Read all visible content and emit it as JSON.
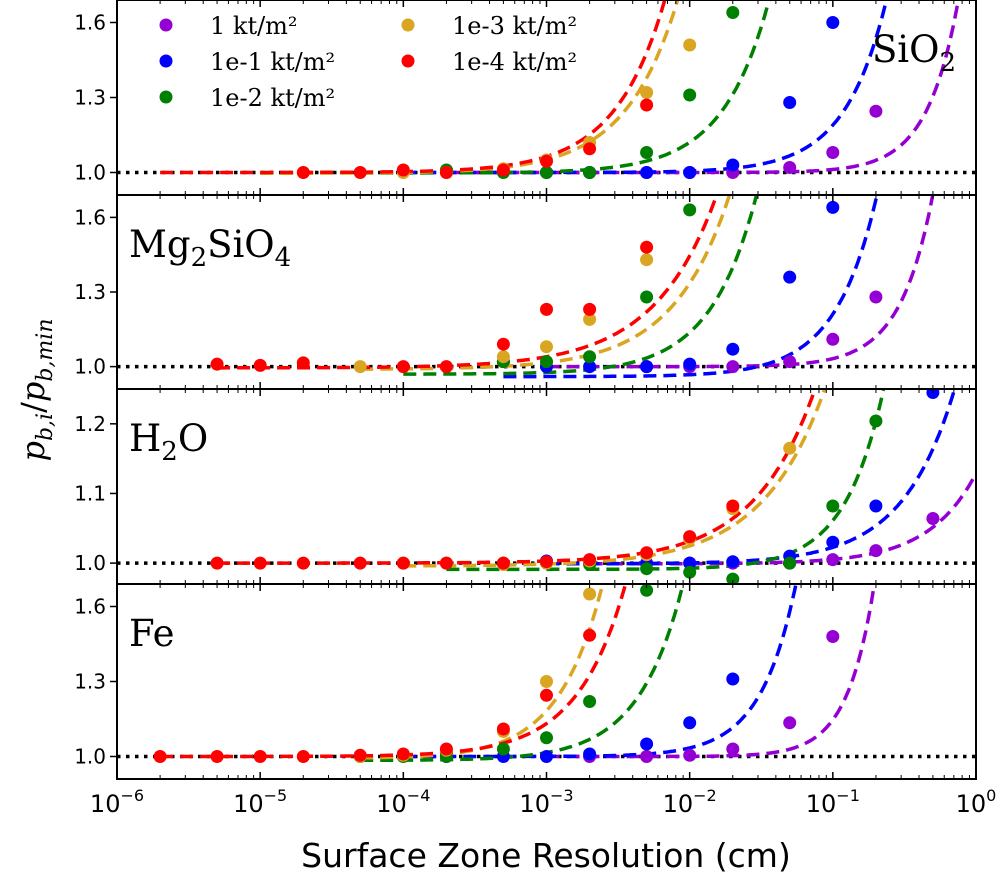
{
  "chart_data": {
    "type": "scatter",
    "title": "",
    "xlabel": "Surface Zone Resolution (cm)",
    "ylabel": "p_{b,i}/p_{b,min}",
    "ylabel_parts": {
      "main": "p",
      "sub1": "b,i",
      "slash": "/",
      "main2": "p",
      "sub2": "b,min"
    },
    "xscale": "log",
    "xlim": [
      1e-06,
      1
    ],
    "xticks": [
      {
        "value": 1e-06,
        "base": "10",
        "exp": "−6"
      },
      {
        "value": 1e-05,
        "base": "10",
        "exp": "−5"
      },
      {
        "value": 0.0001,
        "base": "10",
        "exp": "−4"
      },
      {
        "value": 0.001,
        "base": "10",
        "exp": "−3"
      },
      {
        "value": 0.01,
        "base": "10",
        "exp": "−2"
      },
      {
        "value": 0.1,
        "base": "10",
        "exp": "−1"
      },
      {
        "value": 1,
        "base": "10",
        "exp": "0"
      }
    ],
    "grid": false,
    "legend": {
      "placement": "top-left of first panel",
      "columns": 2,
      "entries": [
        {
          "key": "s1",
          "label": "1 kt/m²"
        },
        {
          "key": "s1e1",
          "label": "1e-1 kt/m²"
        },
        {
          "key": "s1e2",
          "label": "1e-2 kt/m²"
        },
        {
          "key": "s1e3",
          "label": "1e-3 kt/m²"
        },
        {
          "key": "s1e4",
          "label": "1e-4 kt/m²"
        }
      ]
    },
    "series_colors": {
      "s1": "#9400d3",
      "s1e1": "#0000ff",
      "s1e2": "#008000",
      "s1e3": "#daa520",
      "s1e4": "#ff0000"
    },
    "reference_line": {
      "y": 1.0,
      "style": "dotted",
      "color": "#000000"
    },
    "panels": [
      {
        "name": "SiO2",
        "label_main": "SiO",
        "label_sub": "2",
        "label_position": "top-right",
        "ylim": [
          0.91,
          1.69
        ],
        "yticks": [
          1.0,
          1.3,
          1.6
        ],
        "ytick_labels": [
          "1.0",
          "1.3",
          "1.6"
        ],
        "series": [
          {
            "key": "s1",
            "x": [
              0.002,
              0.005,
              0.01,
              0.02,
              0.05,
              0.1,
              0.2
            ],
            "y": [
              1.0,
              1.0,
              1.0,
              1.0,
              1.02,
              1.08,
              1.245
            ]
          },
          {
            "key": "s1e1",
            "x": [
              0.001,
              0.002,
              0.005,
              0.01,
              0.02,
              0.05,
              0.1
            ],
            "y": [
              1.0,
              1.0,
              1.0,
              1.0,
              1.03,
              1.28,
              1.6
            ]
          },
          {
            "key": "s1e2",
            "x": [
              0.0002,
              0.0005,
              0.001,
              0.002,
              0.005,
              0.01,
              0.02
            ],
            "y": [
              1.01,
              1.0,
              1.0,
              1.0,
              1.08,
              1.31,
              1.64
            ]
          },
          {
            "key": "s1e3",
            "x": [
              0.0001,
              0.0002,
              0.0005,
              0.001,
              0.002,
              0.005,
              0.01
            ],
            "y": [
              1.0,
              1.0,
              1.015,
              1.05,
              1.12,
              1.32,
              1.51
            ]
          },
          {
            "key": "s1e4",
            "x": [
              2e-05,
              5e-05,
              0.0001,
              0.0002,
              0.0005,
              0.001,
              0.002,
              0.005
            ],
            "y": [
              1.0,
              1.0,
              1.01,
              1.0,
              1.01,
              1.045,
              1.095,
              1.27
            ]
          }
        ],
        "fits": [
          {
            "key": "s1",
            "x0": 0.0002,
            "a": 1.0,
            "k": 1.22,
            "p": 2.0
          },
          {
            "key": "s1e1",
            "x0": 0.0001,
            "a": 1.0,
            "k": 6.0,
            "p": 1.5
          },
          {
            "key": "s1e2",
            "x0": 5e-05,
            "a": 0.998,
            "k": 62,
            "p": 1.35
          },
          {
            "key": "s1e3",
            "x0": 1e-05,
            "a": 0.997,
            "k": 220,
            "p": 1.2
          },
          {
            "key": "s1e4",
            "x0": 2e-06,
            "a": 1.0,
            "k": 360,
            "p": 1.25
          }
        ]
      },
      {
        "name": "Mg2SiO4",
        "label_main": "Mg",
        "label_sub": "2",
        "label_main2": "SiO",
        "label_sub2": "4",
        "label_position": "top-left",
        "ylim": [
          0.91,
          1.69
        ],
        "yticks": [
          1.0,
          1.3,
          1.6
        ],
        "ytick_labels": [
          "1.0",
          "1.3",
          "1.6"
        ],
        "series": [
          {
            "key": "s1",
            "x": [
              0.005,
              0.01,
              0.02,
              0.05,
              0.1,
              0.2
            ],
            "y": [
              1.0,
              1.0,
              1.0,
              1.02,
              1.11,
              1.28
            ]
          },
          {
            "key": "s1e1",
            "x": [
              0.001,
              0.002,
              0.005,
              0.01,
              0.02,
              0.05,
              0.1
            ],
            "y": [
              1.0,
              1.0,
              1.0,
              1.01,
              1.07,
              1.36,
              1.64
            ]
          },
          {
            "key": "s1e2",
            "x": [
              0.0005,
              0.001,
              0.002,
              0.005,
              0.01
            ],
            "y": [
              1.02,
              1.02,
              1.04,
              1.28,
              1.63
            ]
          },
          {
            "key": "s1e3",
            "x": [
              5e-05,
              0.0005,
              0.001,
              0.002,
              0.005
            ],
            "y": [
              1.0,
              1.04,
              1.08,
              1.19,
              1.43
            ]
          },
          {
            "key": "s1e4",
            "x": [
              5e-06,
              1e-05,
              2e-05,
              0.0001,
              0.0002,
              0.0005,
              0.001,
              0.002,
              0.005
            ],
            "y": [
              1.01,
              1.005,
              1.015,
              1.0,
              1.0,
              1.09,
              1.23,
              1.23,
              1.48
            ]
          }
        ],
        "fits": [
          {
            "key": "s1",
            "x0": 0.001,
            "a": 1.0,
            "k": 2.6,
            "p": 1.9
          },
          {
            "key": "s1e1",
            "x0": 0.0005,
            "a": 0.96,
            "k": 8.0,
            "p": 1.5
          },
          {
            "key": "s1e2",
            "x0": 0.0001,
            "a": 0.97,
            "k": 85,
            "p": 1.35
          },
          {
            "key": "s1e3",
            "x0": 5e-05,
            "a": 0.99,
            "k": 55,
            "p": 1.1
          },
          {
            "key": "s1e4",
            "x0": 5e-06,
            "a": 0.995,
            "k": 45,
            "p": 1.0
          }
        ]
      },
      {
        "name": "H2O",
        "label_main": "H",
        "label_sub": "2",
        "label_main2": "O",
        "label_position": "top-left",
        "ylim": [
          0.97,
          1.25
        ],
        "yticks": [
          1.0,
          1.1,
          1.2
        ],
        "ytick_labels": [
          "1.0",
          "1.1",
          "1.2"
        ],
        "series": [
          {
            "key": "s1",
            "x": [
              0.01,
              0.02,
              0.05,
              0.1,
              0.2,
              0.5
            ],
            "y": [
              1.0,
              1.0,
              1.0,
              1.005,
              1.018,
              1.064
            ]
          },
          {
            "key": "s1e1",
            "x": [
              0.001,
              0.002,
              0.005,
              0.01,
              0.02,
              0.05,
              0.1,
              0.2,
              0.5
            ],
            "y": [
              1.003,
              1.0,
              1.0,
              1.0,
              1.002,
              1.01,
              1.03,
              1.082,
              1.245
            ]
          },
          {
            "key": "s1e2",
            "x": [
              0.0005,
              0.001,
              0.002,
              0.005,
              0.01,
              0.02,
              0.05,
              0.1,
              0.2
            ],
            "y": [
              1.0,
              1.0,
              0.998,
              0.992,
              0.987,
              0.977,
              1.0,
              1.082,
              1.204
            ]
          },
          {
            "key": "s1e3",
            "x": [
              0.0001,
              0.0002,
              0.0005,
              0.001,
              0.002,
              0.005,
              0.01,
              0.02,
              0.05
            ],
            "y": [
              1.0,
              1.0,
              0.998,
              1.0,
              1.003,
              1.012,
              1.035,
              1.078,
              1.165
            ]
          },
          {
            "key": "s1e4",
            "x": [
              5e-06,
              1e-05,
              2e-05,
              5e-05,
              0.0001,
              0.0002,
              0.0005,
              0.001,
              0.002,
              0.005,
              0.01,
              0.02
            ],
            "y": [
              1.0,
              1.0,
              1.0,
              1.0,
              1.0,
              1.0,
              1.0,
              1.002,
              1.005,
              1.015,
              1.038,
              1.082
            ]
          }
        ],
        "fits": [
          {
            "key": "s1",
            "x0": 0.002,
            "a": 0.999,
            "k": 0.13,
            "p": 1.3
          },
          {
            "key": "s1e1",
            "x0": 0.001,
            "a": 0.999,
            "k": 0.38,
            "p": 1.2
          },
          {
            "key": "s1e2",
            "x0": 0.0002,
            "a": 0.991,
            "k": 2.8,
            "p": 1.6
          },
          {
            "key": "s1e3",
            "x0": 0.0001,
            "a": 0.996,
            "k": 2.9,
            "p": 1.0
          },
          {
            "key": "s1e4",
            "x0": 5e-06,
            "a": 1.0,
            "k": 3.6,
            "p": 1.03
          }
        ]
      },
      {
        "name": "Fe",
        "label_main": "Fe",
        "label_position": "top-left",
        "ylim": [
          0.91,
          1.69
        ],
        "yticks": [
          1.0,
          1.3,
          1.6
        ],
        "ytick_labels": [
          "1.0",
          "1.3",
          "1.6"
        ],
        "series": [
          {
            "key": "s1",
            "x": [
              0.002,
              0.005,
              0.01,
              0.02,
              0.05,
              0.1
            ],
            "y": [
              1.0,
              1.0,
              1.005,
              1.03,
              1.135,
              1.48
            ]
          },
          {
            "key": "s1e1",
            "x": [
              5e-05,
              0.0002,
              0.0005,
              0.001,
              0.002,
              0.005,
              0.01,
              0.02
            ],
            "y": [
              1.0,
              1.0,
              1.0,
              1.0,
              1.01,
              1.05,
              1.135,
              1.31
            ]
          },
          {
            "key": "s1e2",
            "x": [
              5e-05,
              0.0001,
              0.0002,
              0.0005,
              0.001,
              0.002,
              0.005
            ],
            "y": [
              1.0,
              1.0,
              1.0,
              1.03,
              1.075,
              1.22,
              1.665
            ]
          },
          {
            "key": "s1e3",
            "x": [
              5e-05,
              0.0001,
              0.0002,
              0.0005,
              0.001,
              0.002
            ],
            "y": [
              1.0,
              1.005,
              1.025,
              1.1,
              1.3,
              1.65
            ]
          },
          {
            "key": "s1e4",
            "x": [
              2e-06,
              5e-06,
              1e-05,
              2e-05,
              5e-05,
              0.0001,
              0.0002,
              0.0005,
              0.001,
              0.002
            ],
            "y": [
              1.0,
              1.0,
              1.0,
              1.0,
              1.005,
              1.01,
              1.03,
              1.11,
              1.245,
              1.485
            ]
          }
        ],
        "fits": [
          {
            "key": "s1",
            "x0": 0.001,
            "a": 1.0,
            "k": 30,
            "p": 2.3
          },
          {
            "key": "s1e1",
            "x0": 0.0001,
            "a": 1.0,
            "k": 110,
            "p": 1.75
          },
          {
            "key": "s1e2",
            "x0": 5e-05,
            "a": 0.985,
            "k": 520,
            "p": 1.4
          },
          {
            "key": "s1e3",
            "x0": 5e-05,
            "a": 0.995,
            "k": 3200,
            "p": 1.4
          },
          {
            "key": "s1e4",
            "x0": 2e-06,
            "a": 1.0,
            "k": 1050,
            "p": 1.3
          }
        ]
      }
    ]
  }
}
